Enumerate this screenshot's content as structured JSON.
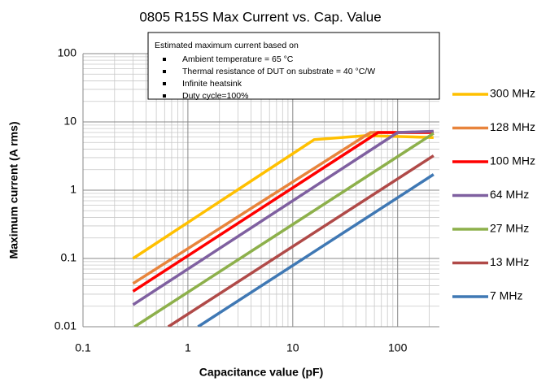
{
  "chart_data": {
    "type": "line",
    "title": "0805 R15S Max Current vs. Cap. Value",
    "x_label": "Capacitance value (pF)",
    "y_label": "Maximum current (A rms)",
    "log_x": true,
    "log_y": true,
    "grid": true,
    "minor_grid": true,
    "legend": "right",
    "xlim": [
      0.1,
      250
    ],
    "ylim": [
      0.01,
      100
    ],
    "xticks": [
      0.1,
      1,
      10,
      100
    ],
    "yticks": [
      0.01,
      0.1,
      1,
      10,
      100
    ],
    "annotation": {
      "title": "Estimated maximum current based on",
      "items": [
        "Ambient temperature = 65 °C",
        "Thermal resistance of  DUT on substrate  = 40 °C/W",
        "Infinite heatsink",
        "Duty cycle=100%"
      ]
    },
    "series": [
      {
        "name": "300 MHz",
        "color": "#ffc000",
        "x": [
          0.3,
          16,
          50,
          220
        ],
        "values": [
          0.1,
          5.5,
          6.3,
          5.9
        ]
      },
      {
        "name": "128 MHz",
        "color": "#e8843c",
        "x": [
          0.3,
          55,
          220
        ],
        "values": [
          0.043,
          7.0,
          7.0
        ]
      },
      {
        "name": "100 MHz",
        "color": "#ff0000",
        "x": [
          0.3,
          65,
          220
        ],
        "values": [
          0.033,
          7.0,
          7.0
        ]
      },
      {
        "name": "64 MHz",
        "color": "#7f60a0",
        "x": [
          0.3,
          100,
          220
        ],
        "values": [
          0.021,
          7.0,
          7.3
        ]
      },
      {
        "name": "27 MHz",
        "color": "#8db04b",
        "x": [
          0.31,
          220
        ],
        "values": [
          0.01,
          6.8
        ]
      },
      {
        "name": "13 MHz",
        "color": "#b04a48",
        "x": [
          0.65,
          220
        ],
        "values": [
          0.01,
          3.2
        ]
      },
      {
        "name": "7 MHz",
        "color": "#3f78b4",
        "x": [
          1.25,
          220
        ],
        "values": [
          0.01,
          1.7
        ]
      }
    ]
  }
}
